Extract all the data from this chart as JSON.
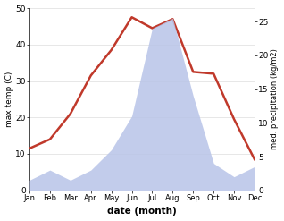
{
  "months": [
    "Jan",
    "Feb",
    "Mar",
    "Apr",
    "May",
    "Jun",
    "Jul",
    "Aug",
    "Sep",
    "Oct",
    "Nov",
    "Dec"
  ],
  "temp": [
    11.5,
    14.0,
    21.0,
    31.5,
    38.5,
    47.5,
    44.5,
    47.0,
    32.5,
    32.0,
    19.5,
    8.5
  ],
  "precip": [
    1.5,
    3.0,
    1.5,
    3.0,
    6.0,
    11.0,
    24.0,
    25.5,
    14.0,
    4.0,
    2.0,
    3.5
  ],
  "precip_fill_color": "#b8c4e8",
  "temp_color": "#c0392b",
  "temp_ylim": [
    0,
    50
  ],
  "temp_yticks": [
    0,
    10,
    20,
    30,
    40,
    50
  ],
  "precip_ylim": [
    0,
    27
  ],
  "precip_yticks": [
    0,
    5,
    10,
    15,
    20,
    25
  ],
  "precip_ytick_labels": [
    "0",
    "5",
    "10",
    "15",
    "20",
    "25"
  ],
  "ylabel_left": "max temp (C)",
  "ylabel_right": "med. precipitation (kg/m2)",
  "xlabel": "date (month)",
  "background_color": "#ffffff",
  "temp_linewidth": 1.8,
  "grid_color": "#dddddd"
}
